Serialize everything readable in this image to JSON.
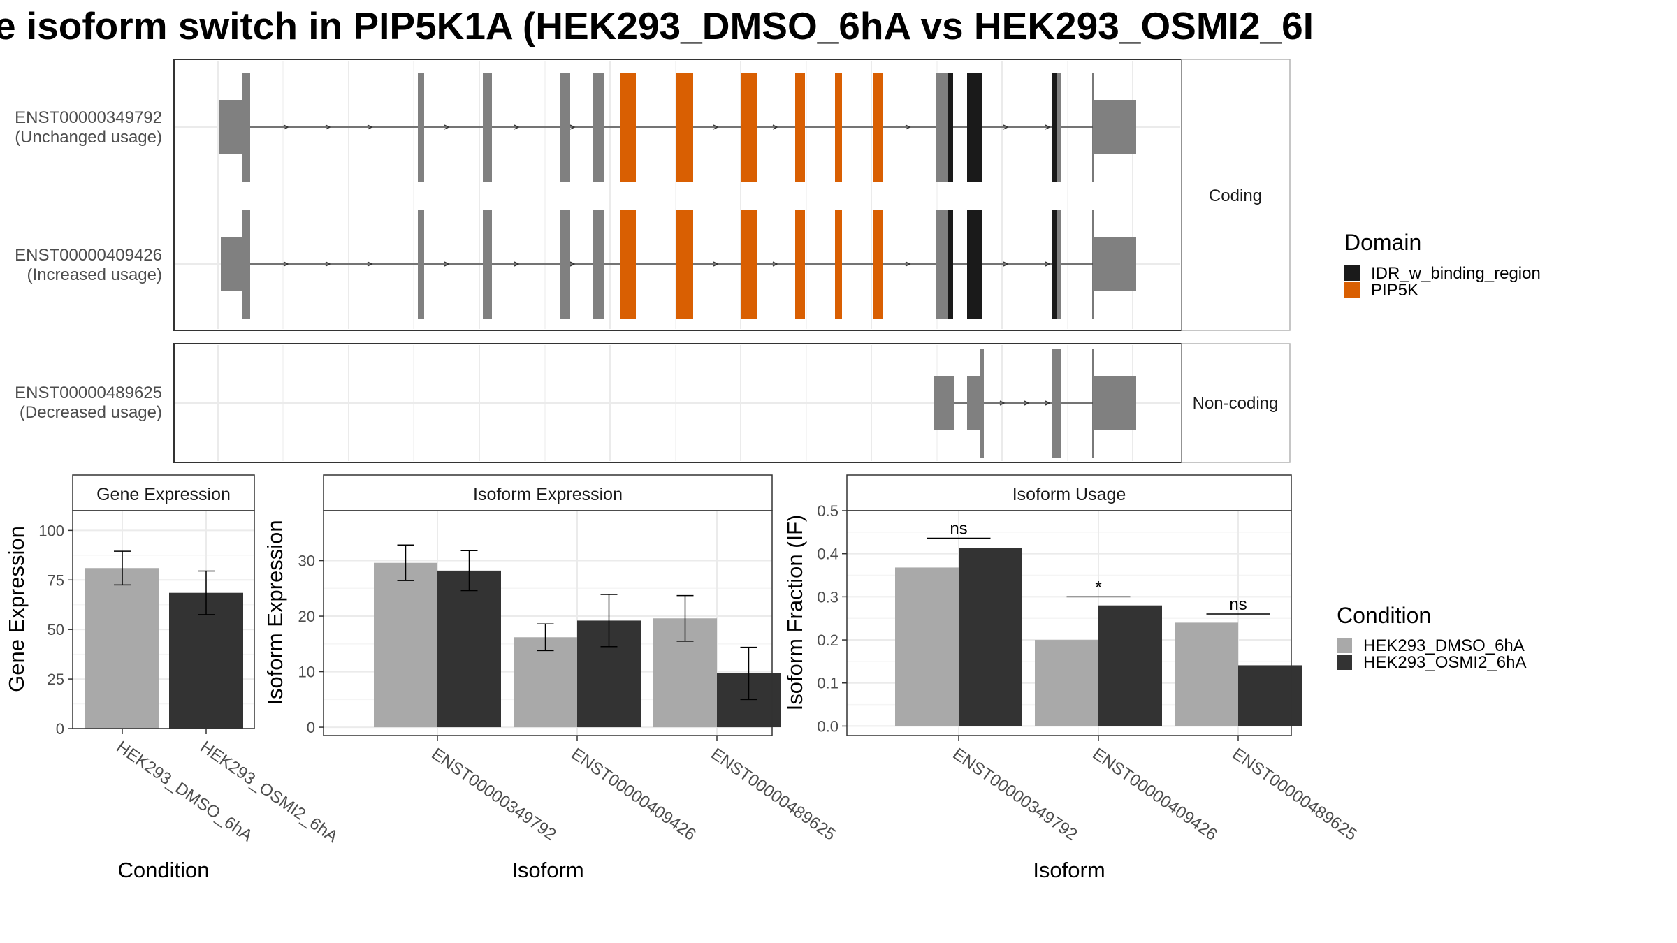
{
  "title": "e isoform switch in PIP5K1A (HEK293_DMSO_6hA vs HEK293_OSMI2_6I",
  "colors": {
    "exon": "#808080",
    "pip5k": "#D95F02",
    "idr": "#1A1A1A",
    "dmso": "#A9A9A9",
    "osmi2": "#333333"
  },
  "structure": {
    "coding_strip_label": "Coding",
    "noncoding_strip_label": "Non-coding",
    "isoforms": [
      {
        "id": "ENST00000349792",
        "usage": "(Unchanged usage)"
      },
      {
        "id": "ENST00000409426",
        "usage": "(Increased usage)"
      },
      {
        "id": "ENST00000489625",
        "usage": "(Decreased usage)"
      }
    ],
    "legend": {
      "title": "Domain",
      "entries": [
        {
          "label": "IDR_w_binding_region",
          "color": "#1A1A1A"
        },
        {
          "label": "PIP5K",
          "color": "#D95F02"
        }
      ]
    }
  },
  "condition_legend": {
    "title": "Condition",
    "entries": [
      {
        "label": "HEK293_DMSO_6hA",
        "color": "#A9A9A9"
      },
      {
        "label": "HEK293_OSMI2_6hA",
        "color": "#333333"
      }
    ]
  },
  "chart_data": [
    {
      "type": "bar",
      "title": "Gene Expression",
      "xlabel": "Condition",
      "ylabel": "Gene Expression",
      "categories": [
        "HEK293_DMSO_6hA",
        "HEK293_OSMI2_6hA"
      ],
      "values": [
        81,
        68.5
      ],
      "errors": [
        8.5,
        11
      ],
      "ylim": [
        0,
        110
      ],
      "yticks": [
        0,
        25,
        50,
        75,
        100
      ],
      "grid": true
    },
    {
      "type": "bar",
      "title": "Isoform Expression",
      "xlabel": "Isoform",
      "ylabel": "Isoform Expression",
      "categories": [
        "ENST00000349792",
        "ENST00000409426",
        "ENST00000489625"
      ],
      "series": [
        {
          "name": "HEK293_DMSO_6hA",
          "values": [
            29.6,
            16.2,
            19.6
          ],
          "errors": [
            3.2,
            2.4,
            4.1
          ]
        },
        {
          "name": "HEK293_OSMI2_6hA",
          "values": [
            28.2,
            19.2,
            9.7
          ],
          "errors": [
            3.6,
            4.7,
            4.7
          ]
        }
      ],
      "ylim": [
        -1.5,
        39
      ],
      "yticks": [
        0,
        10,
        20,
        30
      ],
      "grid": true
    },
    {
      "type": "bar",
      "title": "Isoform Usage",
      "xlabel": "Isoform",
      "ylabel": "Isoform Fraction (IF)",
      "categories": [
        "ENST00000349792",
        "ENST00000409426",
        "ENST00000489625"
      ],
      "series": [
        {
          "name": "HEK293_DMSO_6hA",
          "values": [
            0.368,
            0.2,
            0.24
          ]
        },
        {
          "name": "HEK293_OSMI2_6hA",
          "values": [
            0.414,
            0.28,
            0.141
          ]
        }
      ],
      "significance": [
        "ns",
        "*",
        "ns"
      ],
      "significance_levels": [
        0.436,
        0.3,
        0.26
      ],
      "ylim": [
        -0.022,
        0.5
      ],
      "yticks": [
        0.0,
        0.1,
        0.2,
        0.3,
        0.4,
        0.5
      ],
      "grid": true
    }
  ]
}
